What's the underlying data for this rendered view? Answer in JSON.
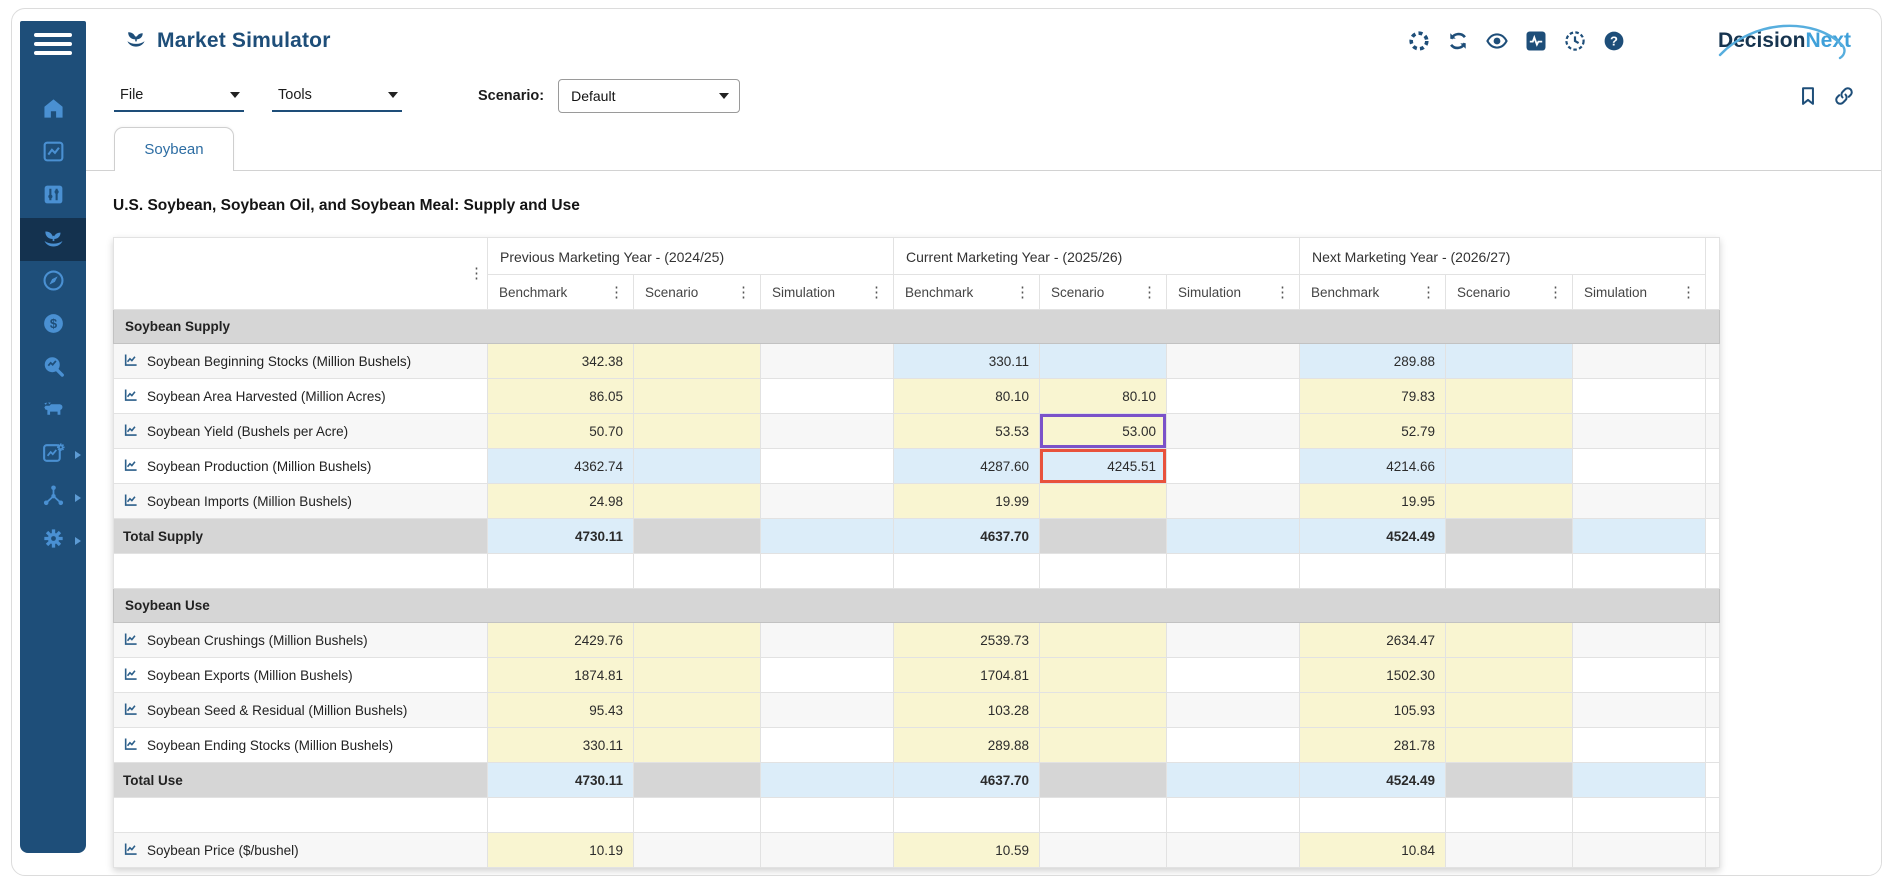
{
  "app": {
    "title": "Market Simulator",
    "logo": {
      "part1": "Decision",
      "part2": "Next"
    }
  },
  "header_icons": [
    {
      "name": "loader-icon"
    },
    {
      "name": "refresh-icon"
    },
    {
      "name": "eye-icon"
    },
    {
      "name": "activity-icon"
    },
    {
      "name": "history-icon"
    },
    {
      "name": "help-icon"
    }
  ],
  "menu": {
    "file_label": "File",
    "tools_label": "Tools",
    "scenario_label": "Scenario:",
    "scenario_value": "Default",
    "right_icons": [
      {
        "name": "bookmark-icon"
      },
      {
        "name": "share-link-icon"
      }
    ]
  },
  "sidebar": {
    "items": [
      {
        "icon": "home"
      },
      {
        "icon": "chart"
      },
      {
        "icon": "sliders"
      },
      {
        "icon": "seedling",
        "active": true
      },
      {
        "icon": "compass"
      },
      {
        "icon": "finance-clock"
      },
      {
        "icon": "search-analytics"
      },
      {
        "icon": "livestock"
      },
      {
        "icon": "chart-settings",
        "caret": true
      },
      {
        "icon": "network",
        "caret": true
      },
      {
        "icon": "settings",
        "caret": true
      }
    ]
  },
  "tabs": [
    {
      "label": "Soybean",
      "active": true
    }
  ],
  "page": {
    "table_title": "U.S. Soybean, Soybean Oil, and Soybean Meal: Supply and Use"
  },
  "table": {
    "year_groups": [
      "Previous Marketing Year - (2024/25)",
      "Current Marketing Year - (2025/26)",
      "Next Marketing Year - (2026/27)"
    ],
    "sub_columns": [
      "Benchmark",
      "Scenario",
      "Simulation"
    ],
    "legend_colors": {
      "input": "#f9f5d1",
      "computed": "#dcedf9",
      "locked": "#d6d6d6",
      "highlight_scenario_edit": "#7b52c9",
      "highlight_recalculated": "#e8523c"
    },
    "rows": [
      {
        "type": "section",
        "label": "Soybean Supply"
      },
      {
        "type": "data",
        "label": "Soybean Beginning Stocks (Million Bushels)",
        "cells": [
          {
            "v": "342.38",
            "c": "y"
          },
          {
            "v": "",
            "c": "y"
          },
          {
            "v": "",
            "c": "w"
          },
          {
            "v": "330.11",
            "c": "b"
          },
          {
            "v": "",
            "c": "b"
          },
          {
            "v": "",
            "c": "w"
          },
          {
            "v": "289.88",
            "c": "b"
          },
          {
            "v": "",
            "c": "b"
          },
          {
            "v": "",
            "c": "w"
          }
        ]
      },
      {
        "type": "data",
        "label": "Soybean Area Harvested (Million Acres)",
        "cells": [
          {
            "v": "86.05",
            "c": "y"
          },
          {
            "v": "",
            "c": "y"
          },
          {
            "v": "",
            "c": "w"
          },
          {
            "v": "80.10",
            "c": "y"
          },
          {
            "v": "80.10",
            "c": "y"
          },
          {
            "v": "",
            "c": "w"
          },
          {
            "v": "79.83",
            "c": "y"
          },
          {
            "v": "",
            "c": "y"
          },
          {
            "v": "",
            "c": "w"
          }
        ]
      },
      {
        "type": "data",
        "label": "Soybean Yield (Bushels per Acre)",
        "cells": [
          {
            "v": "50.70",
            "c": "y"
          },
          {
            "v": "",
            "c": "y"
          },
          {
            "v": "",
            "c": "w"
          },
          {
            "v": "53.53",
            "c": "y"
          },
          {
            "v": "53.00",
            "c": "y",
            "h": "purple"
          },
          {
            "v": "",
            "c": "w"
          },
          {
            "v": "52.79",
            "c": "y"
          },
          {
            "v": "",
            "c": "y"
          },
          {
            "v": "",
            "c": "w"
          }
        ]
      },
      {
        "type": "data",
        "label": "Soybean Production (Million Bushels)",
        "cells": [
          {
            "v": "4362.74",
            "c": "b"
          },
          {
            "v": "",
            "c": "b"
          },
          {
            "v": "",
            "c": "w"
          },
          {
            "v": "4287.60",
            "c": "b"
          },
          {
            "v": "4245.51",
            "c": "b",
            "h": "red"
          },
          {
            "v": "",
            "c": "w"
          },
          {
            "v": "4214.66",
            "c": "b"
          },
          {
            "v": "",
            "c": "b"
          },
          {
            "v": "",
            "c": "w"
          }
        ]
      },
      {
        "type": "data",
        "label": "Soybean Imports (Million Bushels)",
        "cells": [
          {
            "v": "24.98",
            "c": "y"
          },
          {
            "v": "",
            "c": "y"
          },
          {
            "v": "",
            "c": "w"
          },
          {
            "v": "19.99",
            "c": "y"
          },
          {
            "v": "",
            "c": "y"
          },
          {
            "v": "",
            "c": "w"
          },
          {
            "v": "19.95",
            "c": "y"
          },
          {
            "v": "",
            "c": "y"
          },
          {
            "v": "",
            "c": "w"
          }
        ]
      },
      {
        "type": "total",
        "label": "Total Supply",
        "cells": [
          {
            "v": "4730.11",
            "c": "b"
          },
          {
            "v": "",
            "c": "g"
          },
          {
            "v": "",
            "c": "b"
          },
          {
            "v": "4637.70",
            "c": "b"
          },
          {
            "v": "",
            "c": "g"
          },
          {
            "v": "",
            "c": "b"
          },
          {
            "v": "4524.49",
            "c": "b"
          },
          {
            "v": "",
            "c": "g"
          },
          {
            "v": "",
            "c": "b"
          }
        ]
      },
      {
        "type": "spacer"
      },
      {
        "type": "section",
        "label": "Soybean Use"
      },
      {
        "type": "data",
        "label": "Soybean Crushings (Million Bushels)",
        "cells": [
          {
            "v": "2429.76",
            "c": "y"
          },
          {
            "v": "",
            "c": "y"
          },
          {
            "v": "",
            "c": "w"
          },
          {
            "v": "2539.73",
            "c": "y"
          },
          {
            "v": "",
            "c": "y"
          },
          {
            "v": "",
            "c": "w"
          },
          {
            "v": "2634.47",
            "c": "y"
          },
          {
            "v": "",
            "c": "y"
          },
          {
            "v": "",
            "c": "w"
          }
        ]
      },
      {
        "type": "data",
        "label": "Soybean Exports (Million Bushels)",
        "cells": [
          {
            "v": "1874.81",
            "c": "y"
          },
          {
            "v": "",
            "c": "y"
          },
          {
            "v": "",
            "c": "w"
          },
          {
            "v": "1704.81",
            "c": "y"
          },
          {
            "v": "",
            "c": "y"
          },
          {
            "v": "",
            "c": "w"
          },
          {
            "v": "1502.30",
            "c": "y"
          },
          {
            "v": "",
            "c": "y"
          },
          {
            "v": "",
            "c": "w"
          }
        ]
      },
      {
        "type": "data",
        "label": "Soybean Seed & Residual (Million Bushels)",
        "cells": [
          {
            "v": "95.43",
            "c": "y"
          },
          {
            "v": "",
            "c": "y"
          },
          {
            "v": "",
            "c": "w"
          },
          {
            "v": "103.28",
            "c": "y"
          },
          {
            "v": "",
            "c": "y"
          },
          {
            "v": "",
            "c": "w"
          },
          {
            "v": "105.93",
            "c": "y"
          },
          {
            "v": "",
            "c": "y"
          },
          {
            "v": "",
            "c": "w"
          }
        ]
      },
      {
        "type": "data",
        "label": "Soybean Ending Stocks (Million Bushels)",
        "cells": [
          {
            "v": "330.11",
            "c": "y"
          },
          {
            "v": "",
            "c": "y"
          },
          {
            "v": "",
            "c": "w"
          },
          {
            "v": "289.88",
            "c": "y"
          },
          {
            "v": "",
            "c": "y"
          },
          {
            "v": "",
            "c": "w"
          },
          {
            "v": "281.78",
            "c": "y"
          },
          {
            "v": "",
            "c": "y"
          },
          {
            "v": "",
            "c": "w"
          }
        ]
      },
      {
        "type": "total",
        "label": "Total Use",
        "cells": [
          {
            "v": "4730.11",
            "c": "b"
          },
          {
            "v": "",
            "c": "g"
          },
          {
            "v": "",
            "c": "b"
          },
          {
            "v": "4637.70",
            "c": "b"
          },
          {
            "v": "",
            "c": "g"
          },
          {
            "v": "",
            "c": "b"
          },
          {
            "v": "4524.49",
            "c": "b"
          },
          {
            "v": "",
            "c": "g"
          },
          {
            "v": "",
            "c": "b"
          }
        ]
      },
      {
        "type": "spacer"
      },
      {
        "type": "data",
        "label": "Soybean Price ($/bushel)",
        "cells": [
          {
            "v": "10.19",
            "c": "y"
          },
          {
            "v": "",
            "c": "w"
          },
          {
            "v": "",
            "c": "w"
          },
          {
            "v": "10.59",
            "c": "y"
          },
          {
            "v": "",
            "c": "w"
          },
          {
            "v": "",
            "c": "w"
          },
          {
            "v": "10.84",
            "c": "y"
          },
          {
            "v": "",
            "c": "w"
          },
          {
            "v": "",
            "c": "w"
          }
        ]
      }
    ]
  }
}
